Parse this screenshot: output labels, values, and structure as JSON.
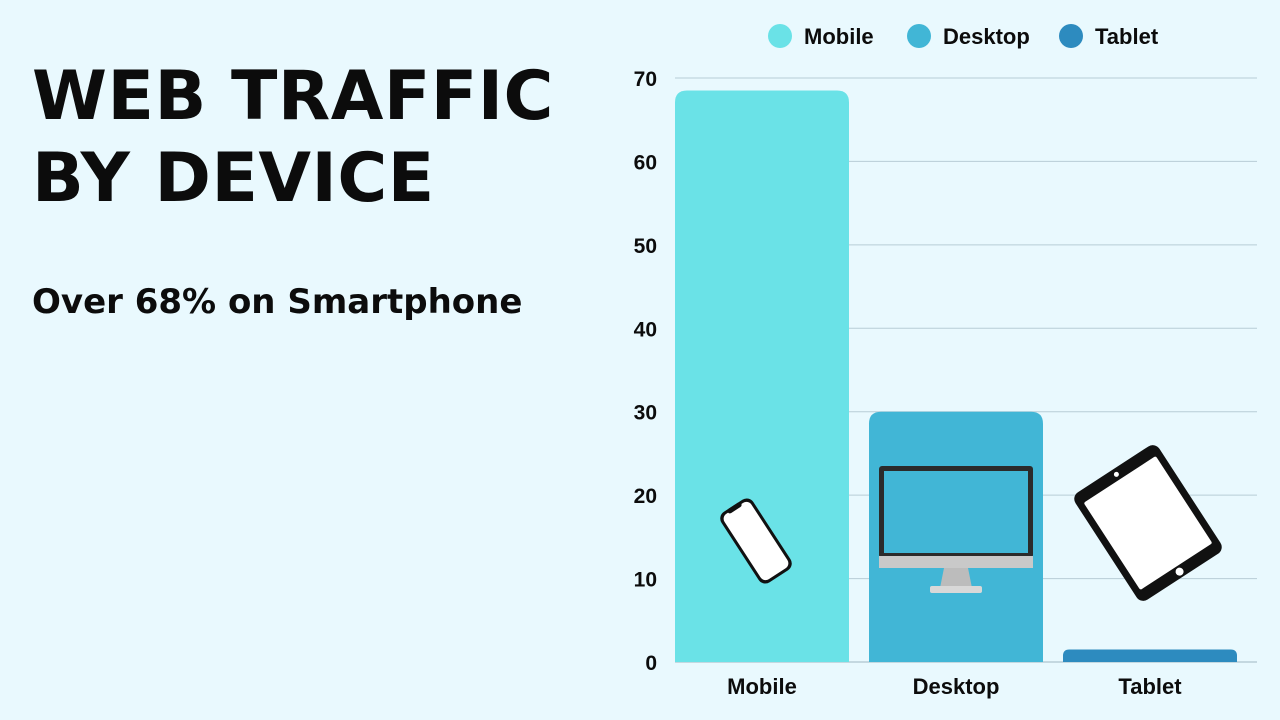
{
  "headline": {
    "line1": "WEB TRAFFIC",
    "line2": "BY DEVICE"
  },
  "subtitle": "Over 68% on Smartphone",
  "chart_data": {
    "type": "bar",
    "categories": [
      "Mobile",
      "Desktop",
      "Tablet"
    ],
    "values": [
      68.5,
      30,
      1.5
    ],
    "colors": [
      "#6ae2e7",
      "#41b6d6",
      "#2d8bbf"
    ],
    "icons": [
      "smartphone-icon",
      "desktop-monitor-icon",
      "tablet-icon"
    ],
    "yticks": [
      0,
      10,
      20,
      30,
      40,
      50,
      60,
      70
    ],
    "ylim": [
      0,
      70
    ],
    "legend": {
      "position": "top",
      "entries": [
        "Mobile",
        "Desktop",
        "Tablet"
      ]
    },
    "grid": true,
    "title": "",
    "xlabel": "",
    "ylabel": ""
  }
}
